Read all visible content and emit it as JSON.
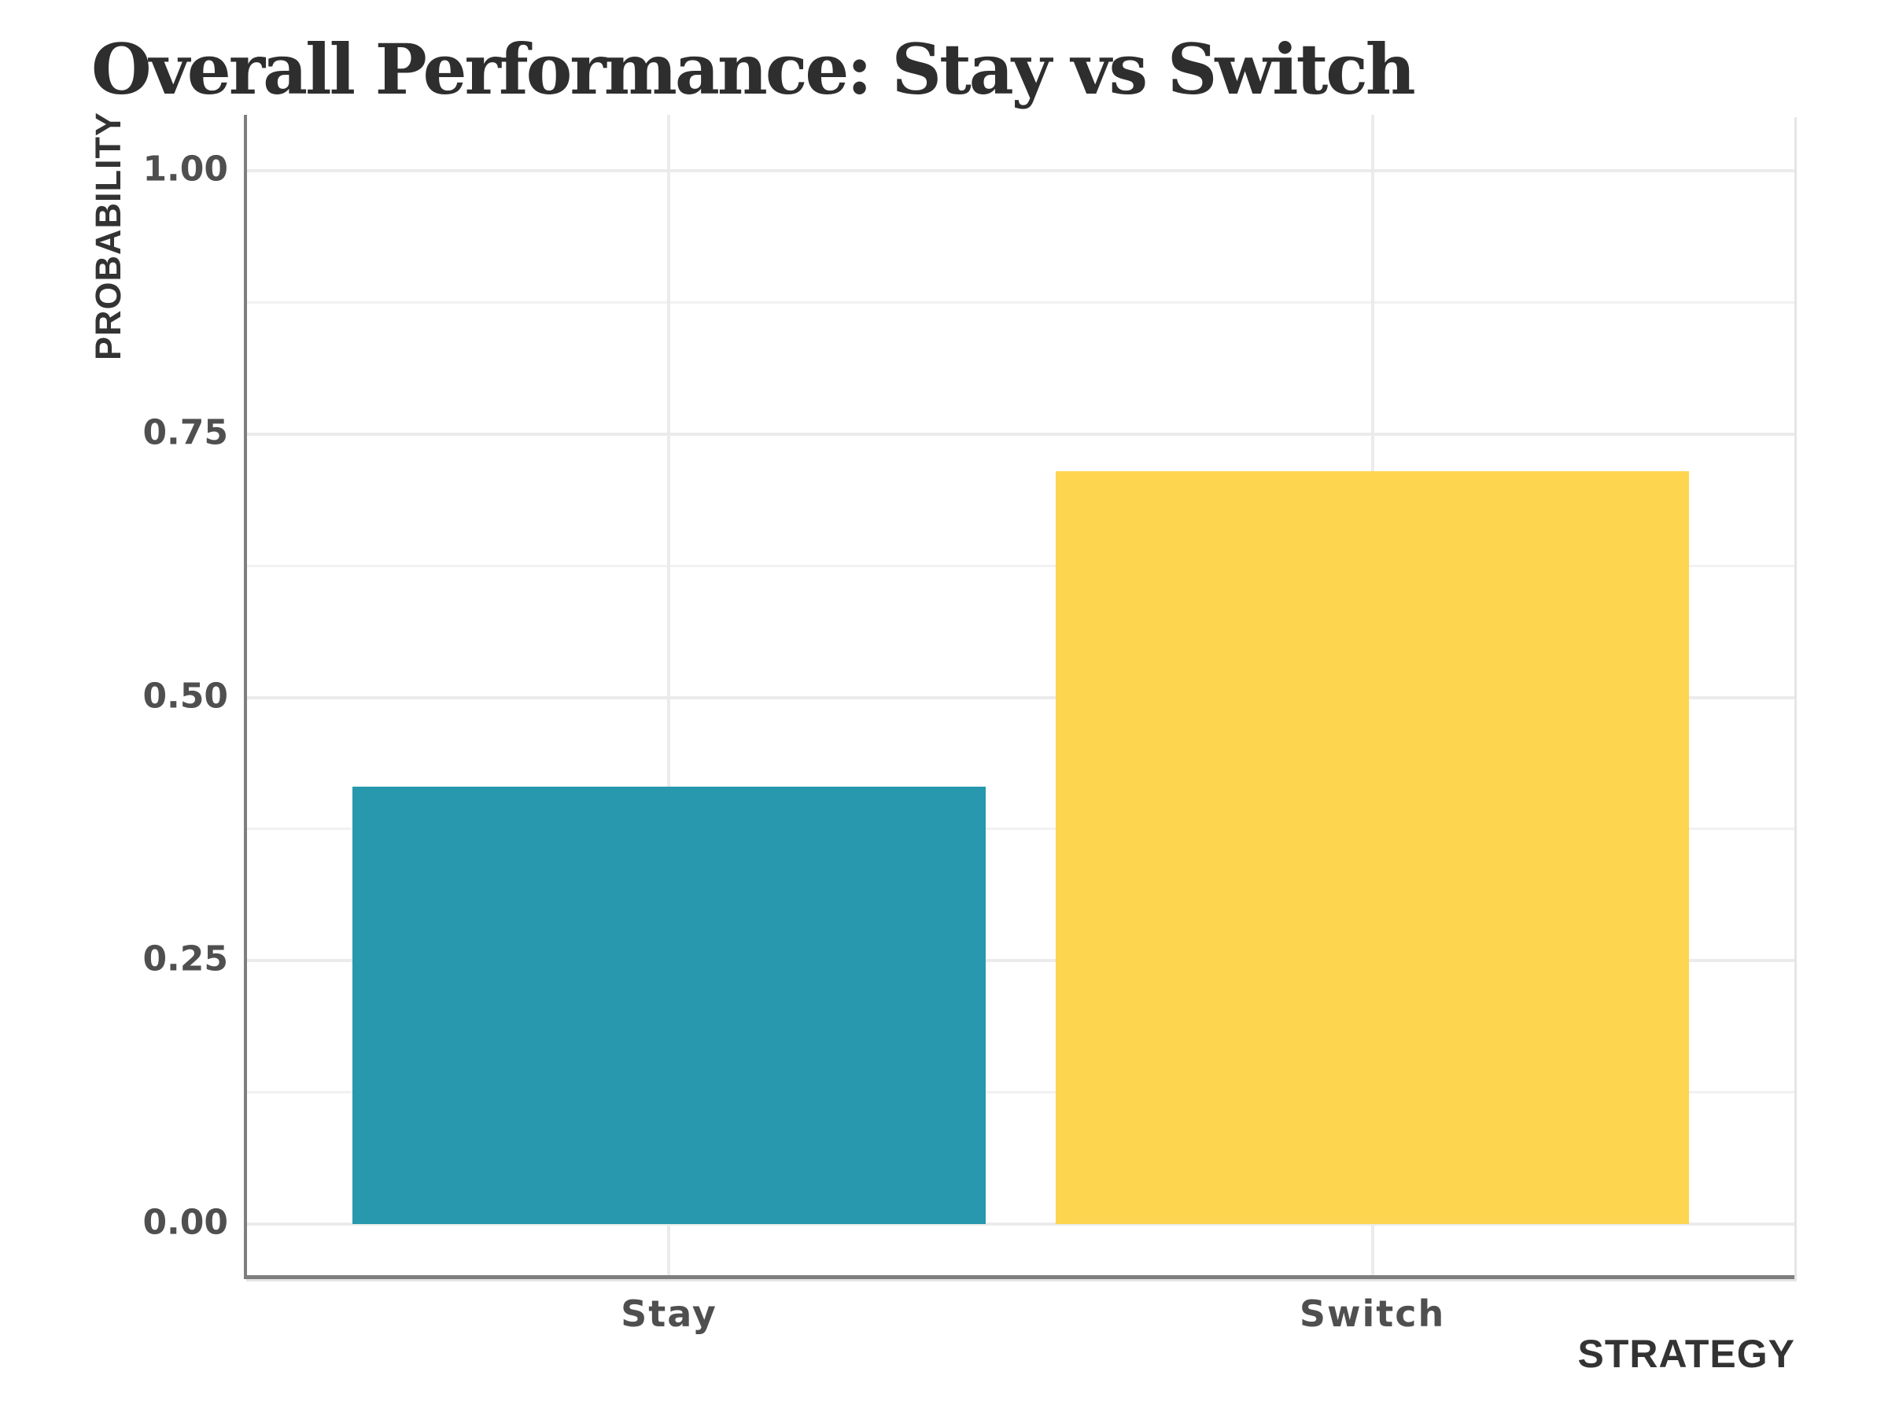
{
  "chart_data": {
    "type": "bar",
    "title": "Overall Performance: Stay vs Switch",
    "xlabel": "STRATEGY",
    "ylabel": "PROBABILITY",
    "categories": [
      "Stay",
      "Switch"
    ],
    "values": [
      0.415,
      0.715
    ],
    "bar_colors": [
      "#2798AD",
      "#FDD54F"
    ],
    "yticks": [
      0.0,
      0.25,
      0.5,
      0.75,
      1.0
    ],
    "ytick_labels": [
      "0.00",
      "0.25",
      "0.50",
      "0.75",
      "1.00"
    ],
    "ylim": [
      -0.05,
      1.05
    ],
    "grid": "horizontal major+minor light gray; vertical major at category centers",
    "legend": "none",
    "style": "xkcd hand-drawn look, white background"
  },
  "colors": {
    "background": "#ffffff",
    "title_text": "#2e2e2e",
    "axis_title_text": "#333333",
    "tick_label_text": "#4f4f4f",
    "axis_line": "#7e7e7e",
    "grid_major": "#ebebeb",
    "grid_minor": "#f1f1f1",
    "bar_stay": "#2798AD",
    "bar_switch": "#FDD54F"
  }
}
